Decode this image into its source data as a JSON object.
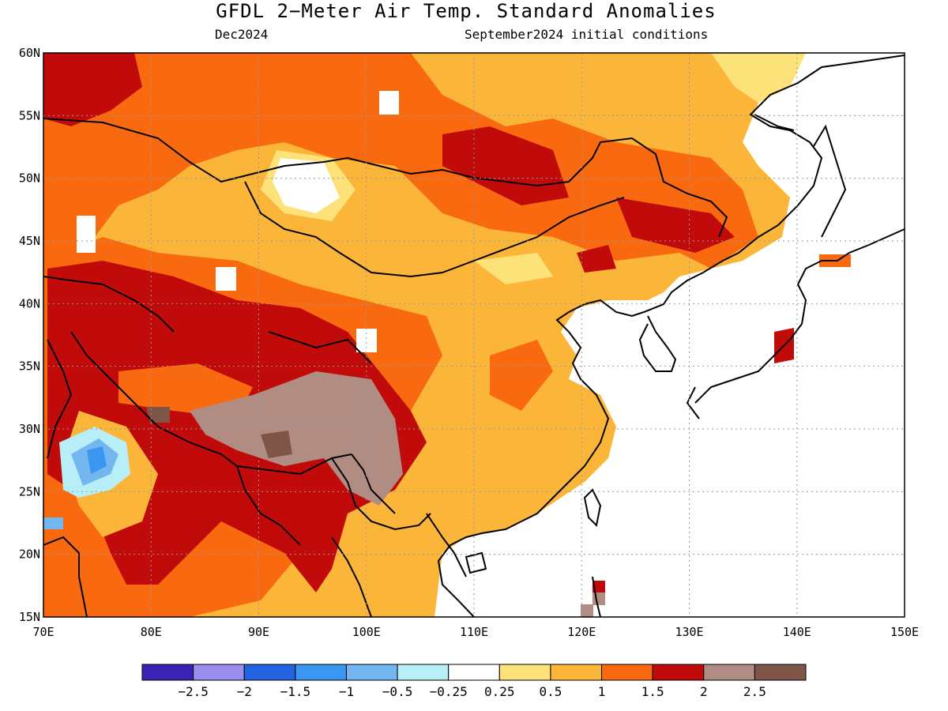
{
  "title": "GFDL 2−Meter Air Temp. Standard Anomalies",
  "valid_month": "Dec2024",
  "initial_conditions": "September2024 initial conditions",
  "lat_labels": [
    "60N",
    "55N",
    "50N",
    "45N",
    "40N",
    "35N",
    "30N",
    "25N",
    "20N",
    "15N"
  ],
  "lon_labels": [
    "70E",
    "80E",
    "90E",
    "100E",
    "110E",
    "120E",
    "130E",
    "140E",
    "150E"
  ],
  "colorbar": {
    "colors": [
      "#3a22b5",
      "#9a8ef0",
      "#2463e0",
      "#3a96f0",
      "#74b6f0",
      "#b8eef8",
      "#ffffff",
      "#fde27a",
      "#fbb63a",
      "#f96a10",
      "#c10a0a",
      "#b08c82",
      "#7e5546"
    ],
    "tick_labels": [
      "−2.5",
      "−2",
      "−1.5",
      "−1",
      "−0.5",
      "−0.25",
      "0.25",
      "0.5",
      "1",
      "1.5",
      "2",
      "2.5"
    ]
  },
  "map_extent": {
    "lon": [
      70,
      150
    ],
    "lat": [
      15,
      60
    ]
  }
}
